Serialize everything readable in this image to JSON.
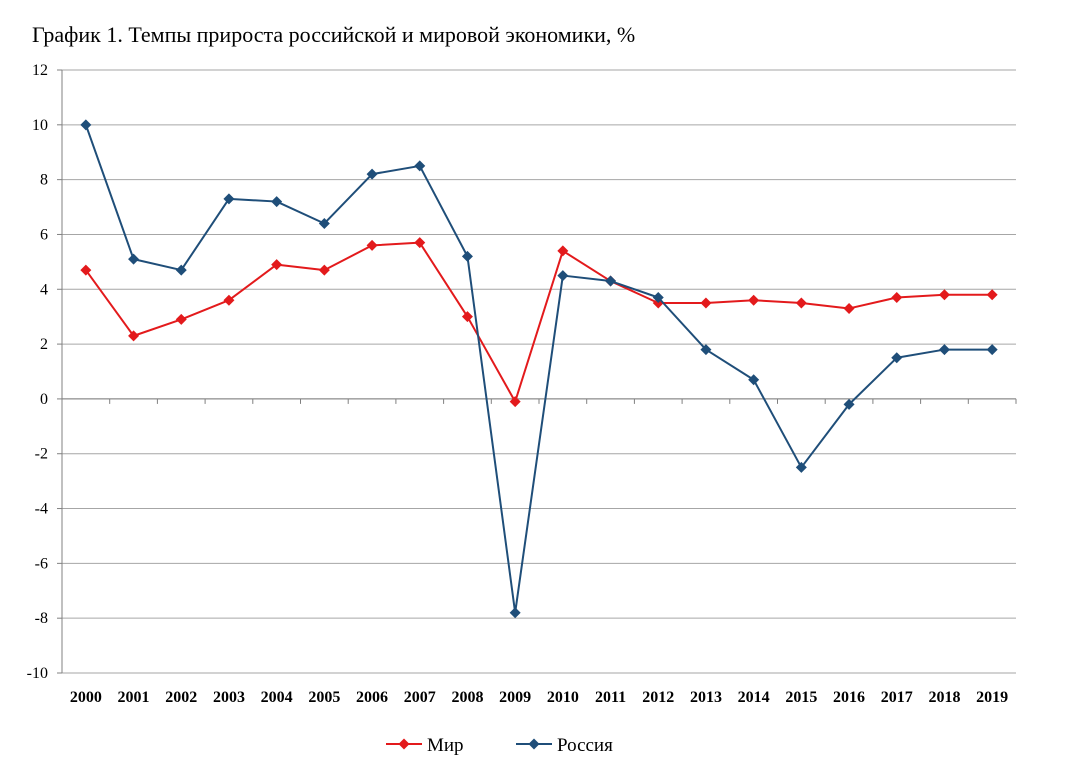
{
  "chart_data": {
    "type": "line",
    "title": "График 1. Темпы прироста российской и мировой экономики, %",
    "xlabel": "",
    "ylabel": "",
    "categories": [
      "2000",
      "2001",
      "2002",
      "2003",
      "2004",
      "2005",
      "2006",
      "2007",
      "2008",
      "2009",
      "2010",
      "2011",
      "2012",
      "2013",
      "2014",
      "2015",
      "2016",
      "2017",
      "2018",
      "2019"
    ],
    "ylim": [
      -10,
      12
    ],
    "yticks": [
      "12",
      "10",
      "8",
      "6",
      "4",
      "2",
      "0",
      "-2",
      "-4",
      "-6",
      "-8",
      "-10"
    ],
    "grid": true,
    "legend_position": "bottom",
    "series": [
      {
        "name": "Мир",
        "color": "#e31a1c",
        "marker": "diamond",
        "values": [
          4.7,
          2.3,
          2.9,
          3.6,
          4.9,
          4.7,
          5.6,
          5.7,
          3.0,
          -0.1,
          5.4,
          4.3,
          3.5,
          3.5,
          3.6,
          3.5,
          3.3,
          3.7,
          3.8,
          3.8
        ]
      },
      {
        "name": "Россия",
        "color": "#1f4e79",
        "marker": "diamond",
        "values": [
          10.0,
          5.1,
          4.7,
          7.3,
          7.2,
          6.4,
          8.2,
          8.5,
          5.2,
          -7.8,
          4.5,
          4.3,
          3.7,
          1.8,
          0.7,
          -2.5,
          -0.2,
          1.5,
          1.8,
          1.8
        ]
      }
    ]
  }
}
